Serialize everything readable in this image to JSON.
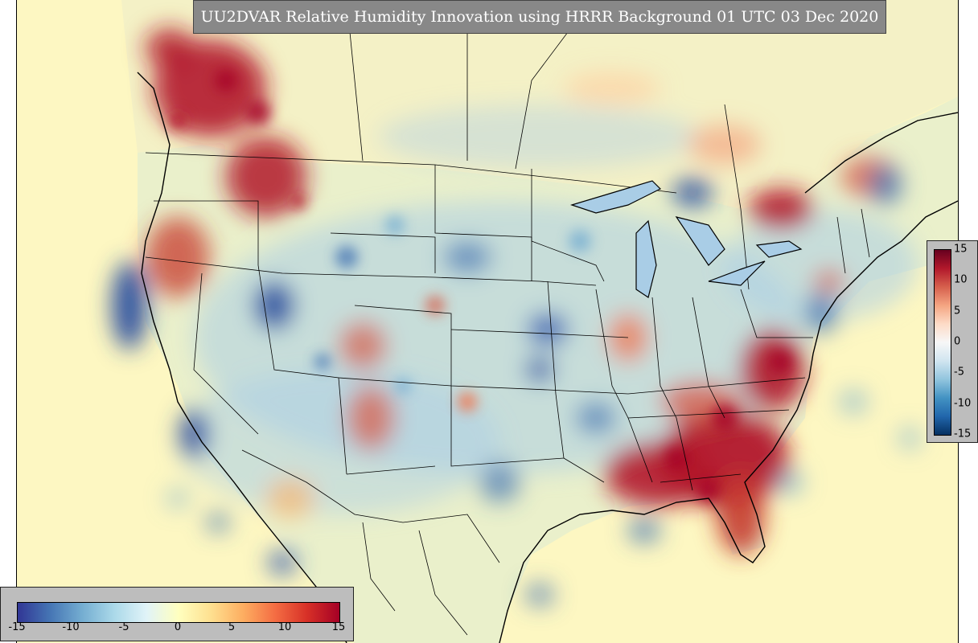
{
  "map": {
    "title": "UU2DVAR Relative Humidity Innovation using HRRR Background 01 UTC 03 Dec 2020",
    "colorbar_bottom": {
      "ticks": [
        "-15",
        "-10",
        "-5",
        "0",
        "5",
        "10",
        "15"
      ],
      "colors": [
        "#313695",
        "#4575b4",
        "#74add1",
        "#abd9e9",
        "#e0f3f8",
        "#ffffbf",
        "#fee090",
        "#fdae61",
        "#f46d43",
        "#d73027",
        "#a50026"
      ]
    },
    "colorbar_right": {
      "ticks": [
        "15",
        "10",
        "5",
        "0",
        "-5",
        "-10",
        "-15"
      ],
      "colors": [
        "#67001f",
        "#b2182b",
        "#d6604d",
        "#f4a582",
        "#fddbc7",
        "#f7f7f7",
        "#d1e5f0",
        "#92c5de",
        "#4393c3",
        "#2166ac",
        "#053061"
      ]
    },
    "field_colors": {
      "background": "#fdf7c2",
      "wet": "#b2182b",
      "dry": "#2c4fa0",
      "light_blue": "#a9cde6"
    }
  }
}
